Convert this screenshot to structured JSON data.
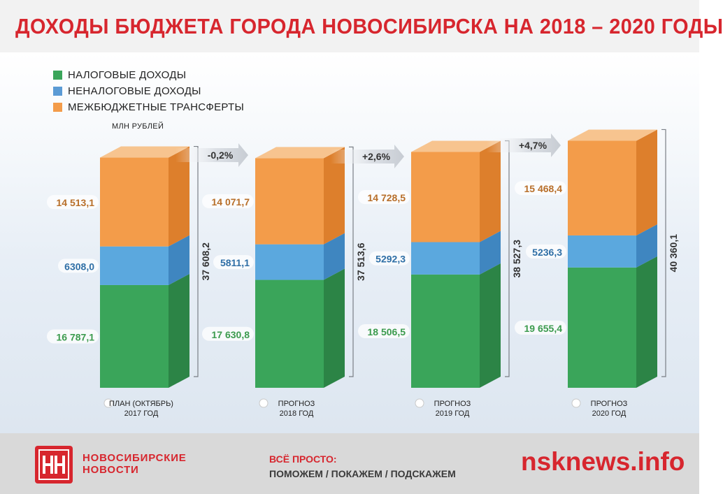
{
  "header": {
    "title": "ДОХОДЫ БЮДЖЕТА ГОРОДА НОВОСИБИРСКА НА 2018 – 2020 ГОДЫ"
  },
  "legend": [
    {
      "label": "НАЛОГОВЫЕ ДОХОДЫ",
      "color": "#3aa55a"
    },
    {
      "label": "НЕНАЛОГОВЫЕ ДОХОДЫ",
      "color": "#5b9bd5"
    },
    {
      "label": "МЕЖБЮДЖЕТНЫЕ ТРАНСФЕРТЫ",
      "color": "#f39c4a"
    }
  ],
  "units": "МЛН РУБЛЕЙ",
  "colors": {
    "tax_front": "#3aa55a",
    "tax_side": "#2c8446",
    "nontax_front": "#5ba8de",
    "nontax_side": "#3f86c0",
    "transfer_front": "#f39c4a",
    "transfer_side": "#dd7f2c",
    "tax_label": "#3c9b4e",
    "nontax_label": "#2f6fa6",
    "transfer_label": "#b86f2a",
    "brand": "#d7262e"
  },
  "chart_data": {
    "type": "bar",
    "stacked": true,
    "categories": [
      "ПЛАН (ОКТЯБРЬ)\n2017 ГОД",
      "ПРОГНОЗ\n2018 ГОД",
      "ПРОГНОЗ\n2019 ГОД",
      "ПРОГНОЗ\n2020 ГОД"
    ],
    "series": [
      {
        "name": "НАЛОГОВЫЕ ДОХОДЫ",
        "values": [
          16787.1,
          17630.8,
          18506.5,
          19655.4
        ],
        "labels": [
          "16 787,1",
          "17 630,8",
          "18 506,5",
          "19 655,4"
        ]
      },
      {
        "name": "НЕНАЛОГОВЫЕ ДОХОДЫ",
        "values": [
          6308.0,
          5811.1,
          5292.3,
          5236.3
        ],
        "labels": [
          "6308,0",
          "5811,1",
          "5292,3",
          "5236,3"
        ]
      },
      {
        "name": "МЕЖБЮДЖЕТНЫЕ ТРАНСФЕРТЫ",
        "values": [
          14513.1,
          14071.7,
          14728.5,
          15468.4
        ],
        "labels": [
          "14 513,1",
          "14 071,7",
          "14 728,5",
          "15 468,4"
        ]
      }
    ],
    "totals": [
      37608.2,
      37513.6,
      38527.3,
      40360.1
    ],
    "total_labels": [
      "37 608,2",
      "37 513,6",
      "38 527,3",
      "40 360,1"
    ],
    "changes": [
      "-0,2%",
      "+2,6%",
      "+4,7%"
    ],
    "ylabel": "МЛН РУБЛЕЙ"
  },
  "footer": {
    "brand_line1": "НОВОСИБИРСКИЕ",
    "brand_line2": "НОВОСТИ",
    "slogan_line1": "ВСЁ ПРОСТО:",
    "slogan_line2": "ПОМОЖЕМ / ПОКАЖЕМ / ПОДСКАЖЕМ",
    "site": "nsknews.info"
  }
}
